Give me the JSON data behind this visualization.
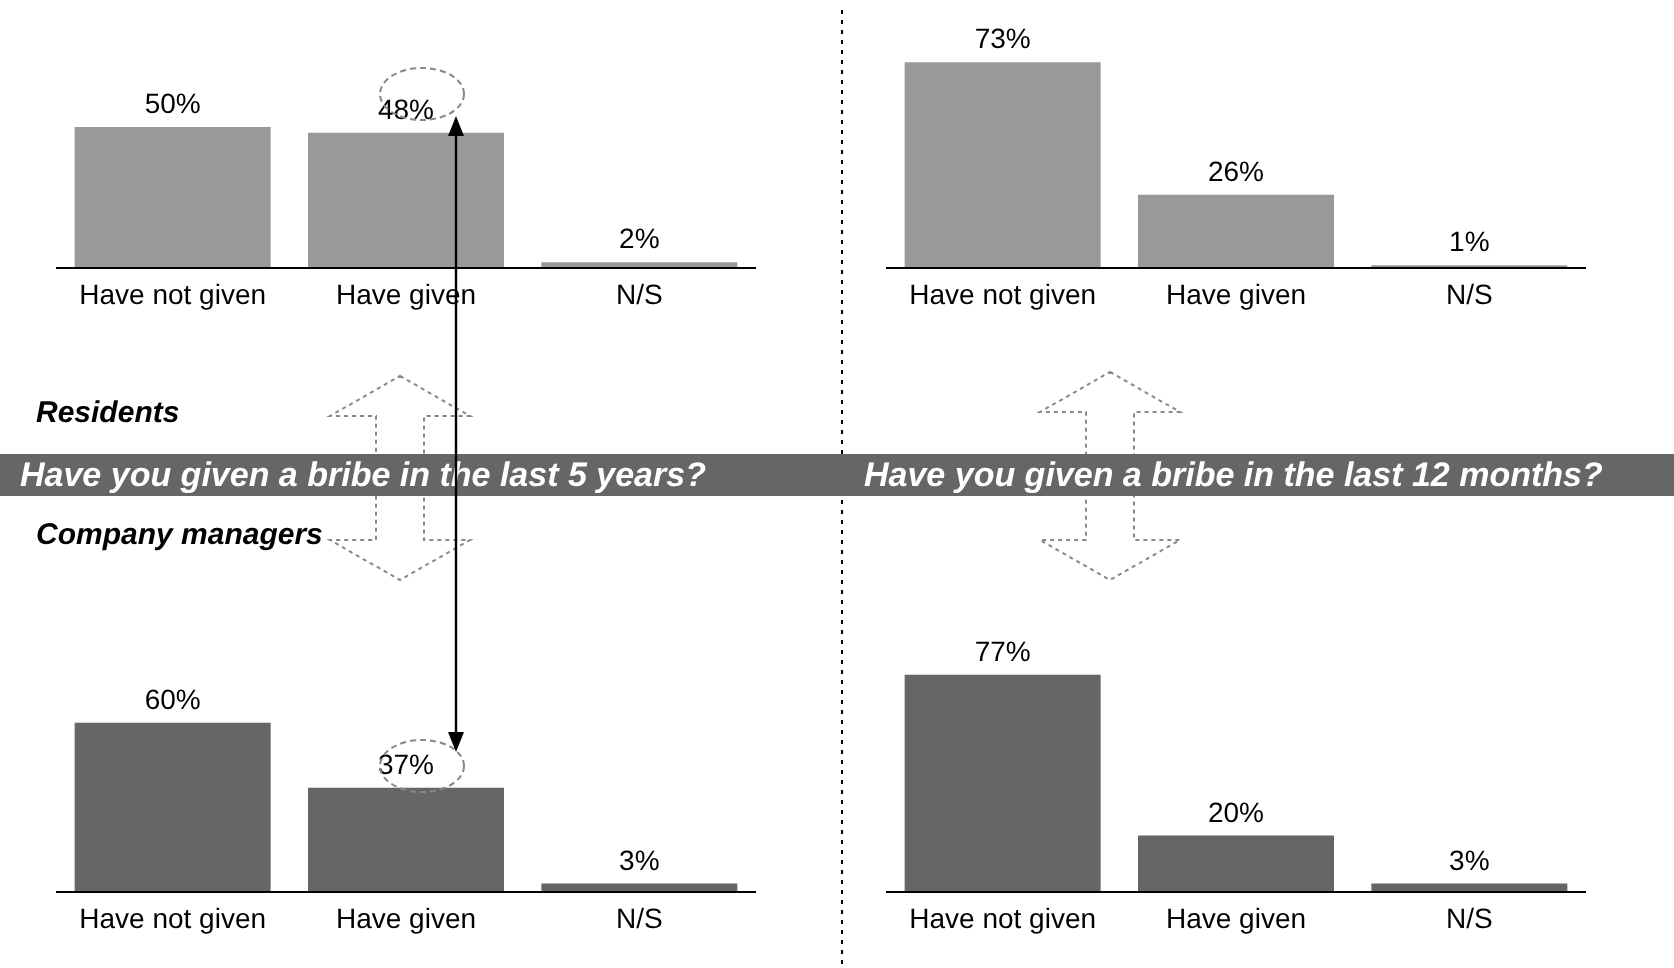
{
  "chart_data": [
    {
      "type": "bar",
      "categories": [
        "Have not given",
        "Have given",
        "N/S"
      ],
      "values": [
        50,
        48,
        2
      ],
      "value_labels": [
        "50%",
        "48%",
        "2%"
      ],
      "color": "#999999"
    },
    {
      "type": "bar",
      "categories": [
        "Have not given",
        "Have given",
        "N/S"
      ],
      "values": [
        73,
        26,
        1
      ],
      "value_labels": [
        "73%",
        "26%",
        "1%"
      ],
      "color": "#999999"
    },
    {
      "type": "bar",
      "categories": [
        "Have not given",
        "Have given",
        "N/S"
      ],
      "values": [
        60,
        37,
        3
      ],
      "value_labels": [
        "60%",
        "37%",
        "3%"
      ],
      "color": "#666666"
    },
    {
      "type": "bar",
      "categories": [
        "Have not given",
        "Have given",
        "N/S"
      ],
      "values": [
        77,
        20,
        3
      ],
      "value_labels": [
        "77%",
        "20%",
        "3%"
      ],
      "color": "#666666"
    },
    {
      "type": "other",
      "annotations": [
        "Residents",
        "Have you given a bribe in the last 5 years?",
        "Have you given a bribe in the last 12 months?",
        "Company managers"
      ]
    }
  ]
}
